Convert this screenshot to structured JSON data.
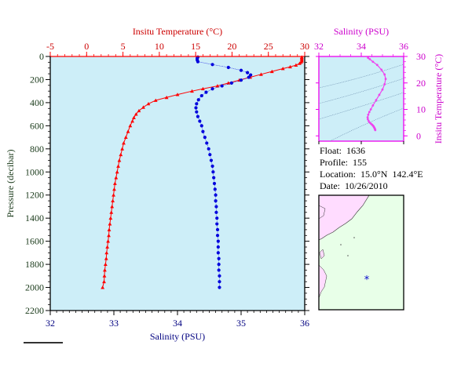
{
  "chart_data": [
    {
      "type": "scatter",
      "xlabel": "Salinity (PSU)",
      "x2label": "Insitu Temperature (°C)",
      "ylabel": "Pressure (decibar)",
      "xlim": [
        32,
        36
      ],
      "x2lim": [
        -5,
        30
      ],
      "ylim": [
        0,
        2200
      ],
      "y_inverted": true,
      "xticks": [
        "32",
        "33",
        "34",
        "35",
        "36"
      ],
      "x2ticks": [
        "-5",
        "0",
        "5",
        "10",
        "15",
        "20",
        "25",
        "30"
      ],
      "yticks": [
        "0",
        "200",
        "400",
        "600",
        "800",
        "1000",
        "1200",
        "1400",
        "1600",
        "1800",
        "2000",
        "2200"
      ],
      "grid": false,
      "series": [
        {
          "quantity": "Insitu Temperature",
          "color": "#ff0000",
          "marker": "triangle",
          "points": [
            [
              29.6,
              5
            ],
            [
              29.6,
              10
            ],
            [
              29.6,
              20
            ],
            [
              29.6,
              30
            ],
            [
              29.6,
              40
            ],
            [
              29.5,
              50
            ],
            [
              29.3,
              60
            ],
            [
              28.8,
              75
            ],
            [
              28.0,
              90
            ],
            [
              27.0,
              105
            ],
            [
              25.5,
              130
            ],
            [
              24.0,
              155
            ],
            [
              22.5,
              180
            ],
            [
              21.0,
              205
            ],
            [
              19.5,
              230
            ],
            [
              18.0,
              255
            ],
            [
              16.0,
              280
            ],
            [
              14.5,
              300
            ],
            [
              12.5,
              330
            ],
            [
              11.0,
              355
            ],
            [
              9.5,
              380
            ],
            [
              8.5,
              410
            ],
            [
              7.8,
              440
            ],
            [
              7.2,
              470
            ],
            [
              6.8,
              500
            ],
            [
              6.5,
              530
            ],
            [
              6.3,
              560
            ],
            [
              6.0,
              600
            ],
            [
              5.7,
              650
            ],
            [
              5.4,
              700
            ],
            [
              5.1,
              750
            ],
            [
              4.9,
              800
            ],
            [
              4.7,
              850
            ],
            [
              4.5,
              900
            ],
            [
              4.35,
              950
            ],
            [
              4.2,
              1000
            ],
            [
              4.05,
              1050
            ],
            [
              3.9,
              1100
            ],
            [
              3.8,
              1150
            ],
            [
              3.7,
              1200
            ],
            [
              3.6,
              1250
            ],
            [
              3.5,
              1300
            ],
            [
              3.4,
              1350
            ],
            [
              3.3,
              1400
            ],
            [
              3.2,
              1450
            ],
            [
              3.1,
              1500
            ],
            [
              3.05,
              1550
            ],
            [
              2.95,
              1600
            ],
            [
              2.85,
              1650
            ],
            [
              2.75,
              1700
            ],
            [
              2.7,
              1750
            ],
            [
              2.6,
              1800
            ],
            [
              2.5,
              1850
            ],
            [
              2.45,
              1900
            ],
            [
              2.4,
              1950
            ],
            [
              2.2,
              2000
            ]
          ]
        },
        {
          "quantity": "Salinity",
          "color": "#0000dd",
          "marker": "circle",
          "points": [
            [
              34.32,
              5
            ],
            [
              34.31,
              15
            ],
            [
              34.31,
              30
            ],
            [
              34.32,
              45
            ],
            [
              34.55,
              70
            ],
            [
              34.8,
              95
            ],
            [
              35.0,
              120
            ],
            [
              35.1,
              140
            ],
            [
              35.15,
              160
            ],
            [
              35.12,
              180
            ],
            [
              35.0,
              205
            ],
            [
              34.85,
              230
            ],
            [
              34.7,
              255
            ],
            [
              34.55,
              280
            ],
            [
              34.45,
              310
            ],
            [
              34.38,
              340
            ],
            [
              34.33,
              375
            ],
            [
              34.3,
              410
            ],
            [
              34.29,
              445
            ],
            [
              34.3,
              480
            ],
            [
              34.32,
              520
            ],
            [
              34.35,
              560
            ],
            [
              34.38,
              600
            ],
            [
              34.4,
              650
            ],
            [
              34.43,
              700
            ],
            [
              34.46,
              750
            ],
            [
              34.49,
              800
            ],
            [
              34.51,
              850
            ],
            [
              34.53,
              900
            ],
            [
              34.55,
              950
            ],
            [
              34.56,
              1000
            ],
            [
              34.57,
              1050
            ],
            [
              34.58,
              1100
            ],
            [
              34.59,
              1150
            ],
            [
              34.6,
              1200
            ],
            [
              34.6,
              1250
            ],
            [
              34.61,
              1300
            ],
            [
              34.61,
              1350
            ],
            [
              34.62,
              1400
            ],
            [
              34.62,
              1450
            ],
            [
              34.63,
              1500
            ],
            [
              34.63,
              1550
            ],
            [
              34.64,
              1600
            ],
            [
              34.64,
              1650
            ],
            [
              34.64,
              1700
            ],
            [
              34.65,
              1750
            ],
            [
              34.65,
              1800
            ],
            [
              34.65,
              1850
            ],
            [
              34.66,
              1900
            ],
            [
              34.66,
              1950
            ],
            [
              34.66,
              2000
            ]
          ]
        }
      ]
    },
    {
      "type": "scatter",
      "xlabel": "Salinity (PSU)",
      "ylabel": "Insitu Temperature (°C)",
      "xlim": [
        32,
        36
      ],
      "ylim": [
        -2,
        30
      ],
      "xticks": [
        "32",
        "34",
        "36"
      ],
      "yticks": [
        "0",
        "10",
        "20",
        "30"
      ],
      "color": "#ee44ee",
      "points": [
        [
          34.32,
          29.5
        ],
        [
          34.4,
          29.0
        ],
        [
          34.55,
          28.0
        ],
        [
          34.75,
          26.8
        ],
        [
          34.95,
          25.0
        ],
        [
          35.1,
          23.2
        ],
        [
          35.15,
          21.5
        ],
        [
          35.1,
          19.5
        ],
        [
          35.0,
          17.5
        ],
        [
          34.85,
          15.5
        ],
        [
          34.7,
          13.5
        ],
        [
          34.55,
          11.5
        ],
        [
          34.45,
          10.0
        ],
        [
          34.38,
          9.0
        ],
        [
          34.33,
          8.0
        ],
        [
          34.3,
          7.0
        ],
        [
          34.31,
          6.3
        ],
        [
          34.35,
          5.6
        ],
        [
          34.4,
          5.0
        ],
        [
          34.46,
          4.6
        ],
        [
          34.51,
          4.2
        ],
        [
          34.55,
          3.9
        ],
        [
          34.58,
          3.6
        ],
        [
          34.6,
          3.3
        ],
        [
          34.62,
          3.0
        ],
        [
          34.64,
          2.7
        ],
        [
          34.65,
          2.4
        ],
        [
          34.66,
          2.2
        ]
      ]
    }
  ],
  "info": {
    "float": "Float:  1636",
    "profile": "Profile:  155",
    "location": "Location:  15.0°N  142.4°E",
    "date": "Date:  10/26/2010"
  },
  "map": {
    "marker": "*",
    "marker_color": "#0000cc",
    "land_color": "#ffdcff",
    "ocean_color": "#e8ffe8"
  },
  "colors": {
    "plot_background": "#cdeef8",
    "temperature": "#ff0000",
    "salinity": "#0000dd",
    "ts_accent": "#ee00ee",
    "axis_text_main": "#000080"
  }
}
